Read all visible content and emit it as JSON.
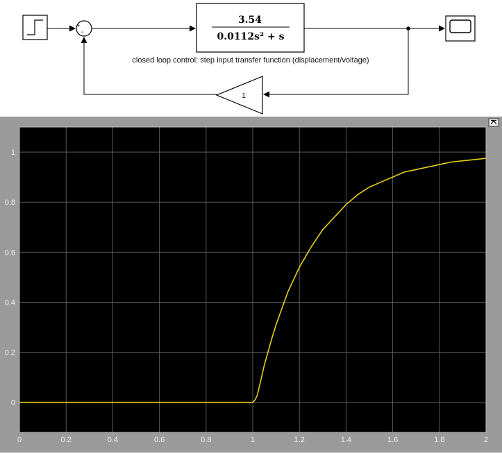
{
  "diagram": {
    "sum_signs": {
      "plus": "+",
      "minus": "-"
    },
    "transfer_function": {
      "numerator": "3.54",
      "denominator": "0.0112s² + s"
    },
    "caption": "closed loop control: step input transfer function (displacement/voltage)",
    "feedback_gain": "1",
    "icons": [
      "step-source-icon",
      "sum-junction-icon",
      "transfer-fcn-icon",
      "gain-icon",
      "scope-icon"
    ]
  },
  "scope": {
    "toolbar_icon": "restore-view-icon",
    "colors": {
      "background": "#000000",
      "frame": "#9a9a9a",
      "grid": "#5a5a5a",
      "trace": "#e6d01c"
    }
  },
  "chart_data": {
    "type": "line",
    "xlim": [
      0,
      2
    ],
    "ylim": [
      -0.12,
      1.1
    ],
    "xticks": [
      0,
      0.2,
      0.4,
      0.6,
      0.8,
      1,
      1.2,
      1.4,
      1.6,
      1.8,
      2
    ],
    "xtick_labels": [
      "0",
      "0.2",
      "0.4",
      "0.6",
      "0.8",
      "1",
      "1.2",
      "1.4",
      "1.6",
      "1.8",
      "2"
    ],
    "yticks": [
      0,
      0.2,
      0.4,
      0.6,
      0.8,
      1
    ],
    "ytick_labels": [
      "0",
      "0.2",
      "0.4",
      "0.6",
      "0.8",
      "1"
    ],
    "grid": true,
    "series": [
      {
        "color": "#e6d01c",
        "x": [
          0,
          0.2,
          0.4,
          0.6,
          0.8,
          1.0,
          1.01,
          1.02,
          1.03,
          1.05,
          1.08,
          1.1,
          1.15,
          1.2,
          1.25,
          1.3,
          1.35,
          1.4,
          1.45,
          1.5,
          1.55,
          1.6,
          1.65,
          1.7,
          1.75,
          1.8,
          1.85,
          1.9,
          1.95,
          2.0
        ],
        "y": [
          0,
          0,
          0,
          0,
          0,
          0,
          0.01,
          0.03,
          0.07,
          0.15,
          0.25,
          0.31,
          0.44,
          0.54,
          0.62,
          0.69,
          0.74,
          0.79,
          0.83,
          0.86,
          0.88,
          0.9,
          0.92,
          0.93,
          0.94,
          0.95,
          0.96,
          0.965,
          0.97,
          0.975
        ]
      }
    ]
  }
}
